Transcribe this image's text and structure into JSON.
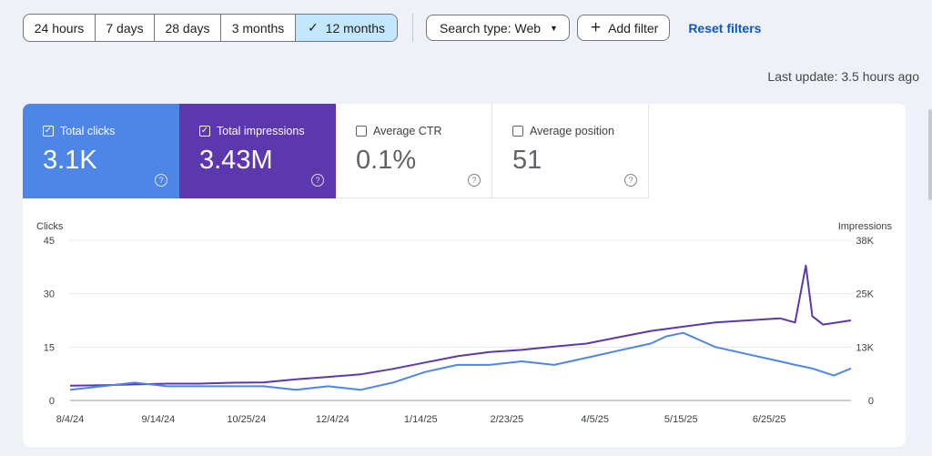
{
  "toolbar": {
    "ranges": [
      "24 hours",
      "7 days",
      "28 days",
      "3 months",
      "12 months"
    ],
    "selected_range": "12 months",
    "search_type": "Search type: Web",
    "add_filter": "Add filter",
    "reset": "Reset filters"
  },
  "last_update": "Last update: 3.5 hours ago",
  "metrics": [
    {
      "label": "Total clicks",
      "value": "3.1K",
      "checked": true
    },
    {
      "label": "Total impressions",
      "value": "3.43M",
      "checked": true
    },
    {
      "label": "Average CTR",
      "value": "0.1%",
      "checked": false
    },
    {
      "label": "Average position",
      "value": "51",
      "checked": false
    }
  ],
  "colors": {
    "clicks": "#4e86e8",
    "impressions": "#5d37ad",
    "accent": "#0b57d0"
  },
  "chart_data": {
    "type": "line",
    "ylabel_left": "Clicks",
    "ylabel_right": "Impressions",
    "yticks_left": [
      "0",
      "15",
      "30",
      "45"
    ],
    "yticks_right": [
      "0",
      "13K",
      "25K",
      "38K"
    ],
    "ylim_left": [
      0,
      45
    ],
    "ylim_right": [
      0,
      38000
    ],
    "x_tick_labels": [
      "8/4/24",
      "9/14/24",
      "10/25/24",
      "12/4/24",
      "1/14/25",
      "2/23/25",
      "4/5/25",
      "5/15/25",
      "6/25/25"
    ],
    "x_range": [
      "8/4/24",
      "8/2/25"
    ],
    "series": [
      {
        "name": "Clicks",
        "color": "#4e86e8",
        "axis": "left",
        "x": [
          "8/4/24",
          "8/19/24",
          "9/3/24",
          "9/18/24",
          "10/3/24",
          "10/18/24",
          "11/2/24",
          "11/17/24",
          "12/2/24",
          "12/17/24",
          "1/1/25",
          "1/16/25",
          "1/31/25",
          "2/15/25",
          "3/2/25",
          "3/17/25",
          "4/1/25",
          "4/16/25",
          "5/1/25",
          "5/8/25",
          "5/16/25",
          "5/31/25",
          "6/15/25",
          "6/30/25",
          "7/7/25",
          "7/15/25",
          "7/25/25",
          "8/2/25"
        ],
        "values": [
          3,
          4,
          5,
          4,
          4,
          4,
          4,
          3,
          4,
          3,
          5,
          8,
          10,
          10,
          11,
          10,
          12,
          14,
          16,
          18,
          19,
          15,
          13,
          11,
          10,
          9,
          7,
          9
        ]
      },
      {
        "name": "Impressions",
        "color": "#5d37ad",
        "axis": "right",
        "x": [
          "8/4/24",
          "8/19/24",
          "9/3/24",
          "9/18/24",
          "10/3/24",
          "10/18/24",
          "11/2/24",
          "11/17/24",
          "12/2/24",
          "12/17/24",
          "1/1/25",
          "1/16/25",
          "1/31/25",
          "2/15/25",
          "3/2/25",
          "3/17/25",
          "4/1/25",
          "4/16/25",
          "5/1/25",
          "5/16/25",
          "5/31/25",
          "6/15/25",
          "6/30/25",
          "7/7/25",
          "7/12/25",
          "7/15/25",
          "7/20/25",
          "8/2/25"
        ],
        "values": [
          3500,
          3600,
          3800,
          4000,
          4000,
          4200,
          4300,
          5000,
          5600,
          6200,
          7500,
          9000,
          10500,
          11500,
          12000,
          12800,
          13500,
          15000,
          16500,
          17500,
          18500,
          19000,
          19500,
          18500,
          32000,
          20000,
          18000,
          19000
        ]
      }
    ],
    "grid": true
  }
}
